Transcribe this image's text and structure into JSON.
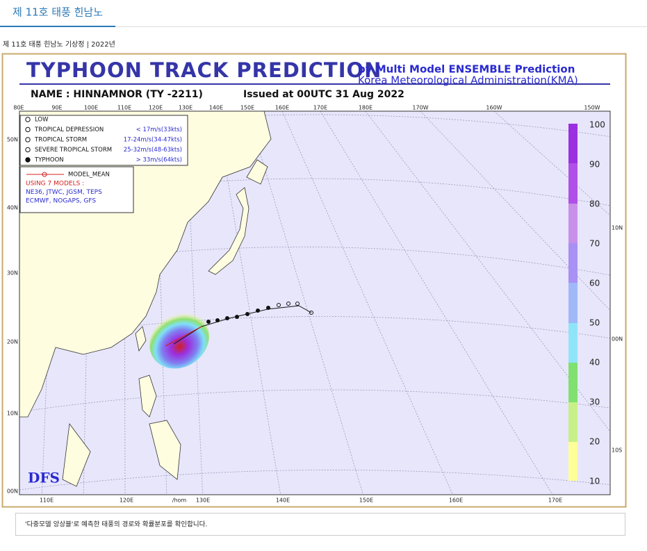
{
  "header": {
    "title": "제 11호 태풍 힌남노"
  },
  "caption": "제 11호 태풍 힌남노 기상정 | 2022년",
  "map": {
    "title": "TYPHOON TRACK PREDICTION",
    "subtitle1": "by Multi Model ENSEMBLE Prediction",
    "subtitle2": "Korea Meteorological Administration(KMA)",
    "name": "NAME : HINNAMNOR (TY -2211)",
    "issued": "Issued at 00UTC 31 Aug 2022",
    "top_lon": [
      "80E",
      "90E",
      "100E",
      "110E",
      "120E",
      "130E",
      "140E",
      "150E",
      "160E",
      "170E",
      "180E",
      "170W",
      "160W",
      "150W"
    ],
    "bottom_lon": [
      "110E",
      "120E",
      "/hom",
      "130E",
      "140E",
      "150E",
      "160E",
      "170E"
    ],
    "left_lat": [
      "50N",
      "40N",
      "30N",
      "20N",
      "10N",
      "00N"
    ],
    "right_lat": [
      "10N",
      "00N",
      "10S"
    ],
    "legend": [
      {
        "label": "LOW"
      },
      {
        "label": "TROPICAL DEPRESSION",
        "speed": "< 17m/s(33kts)"
      },
      {
        "label": "TROPICAL STORM",
        "speed": "17-24m/s(34-47kts)"
      },
      {
        "label": "SEVERE TROPICAL STORM",
        "speed": "25-32m/s(48-63kts)"
      },
      {
        "label": "TYPHOON",
        "speed": "> 33m/s(64kts)"
      }
    ],
    "model_mean": "MODEL_MEAN",
    "models": [
      "USING 7 MODELS :",
      "NE36, JTWC, JGSM, TEPS",
      "ECMWF, NOGAPS, GFS"
    ],
    "colorbar": [
      100,
      90,
      80,
      70,
      60,
      50,
      40,
      30,
      20,
      10
    ],
    "logo": "DFS"
  },
  "note": "'다중모델 앙상블'로 예측한 태풍의 경로와 확률분포를 확인합니다."
}
